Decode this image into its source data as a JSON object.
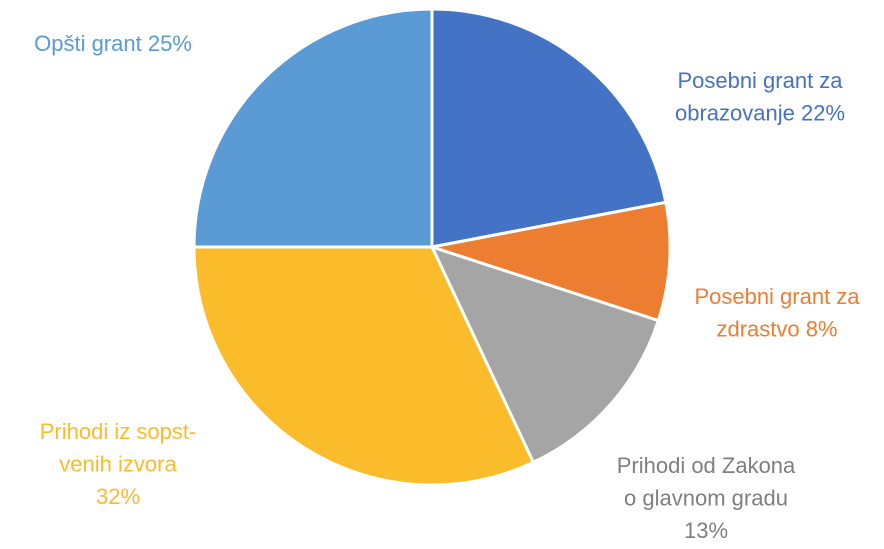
{
  "chart_data": {
    "type": "pie",
    "categories": [
      [
        "Posebni grant za",
        "obrazovanje"
      ],
      [
        "Posebni grant za",
        "zdrastvo"
      ],
      [
        "Prihodi od Zakona",
        "o glavnom gradu"
      ],
      [
        "Prihodi iz sopst-",
        "venih izvora"
      ],
      [
        "Opšti grant"
      ]
    ],
    "values": [
      22,
      8,
      13,
      32,
      25
    ],
    "value_labels": [
      "22%",
      "8%",
      "13%",
      "32%",
      "25%"
    ],
    "colors": [
      "#4472c4",
      "#ed7d31",
      "#a5a5a5",
      "#fbbc2c",
      "#5b9bd5"
    ]
  }
}
